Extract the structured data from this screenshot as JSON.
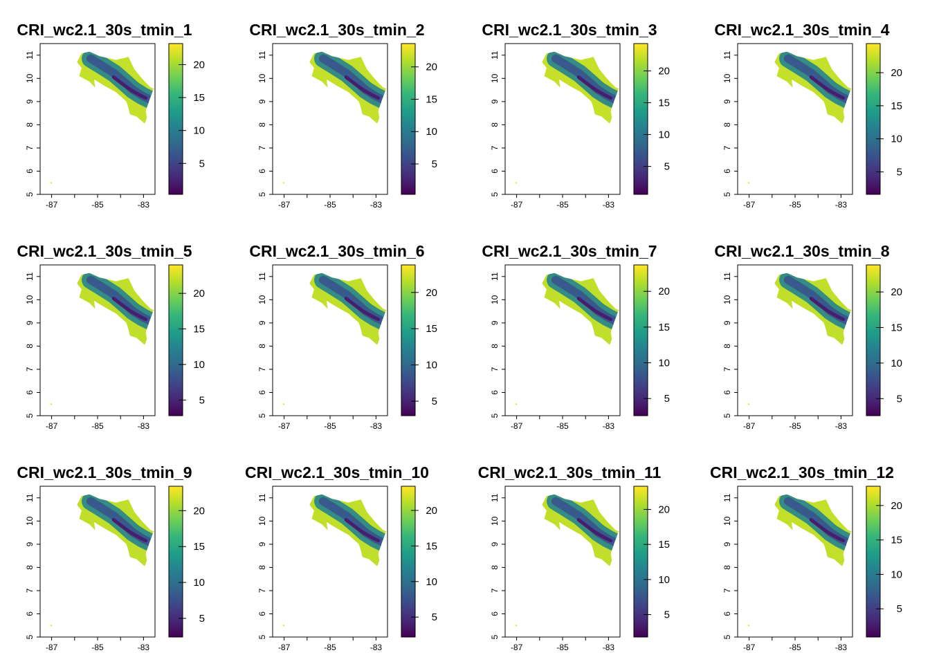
{
  "figure": {
    "colormap": [
      "#440154",
      "#482878",
      "#3e4989",
      "#31688e",
      "#26828e",
      "#1f9e89",
      "#35b779",
      "#6ece58",
      "#b5de2b",
      "#fde725"
    ]
  },
  "chart_data": [
    {
      "type": "heatmap",
      "title": "CRI_wc2.1_30s_tmin_1",
      "xlim": [
        -87.5,
        -82.5
      ],
      "ylim": [
        5,
        11.5
      ],
      "x_ticks": [
        "-87",
        "-85",
        "-83"
      ],
      "y_ticks": [
        "5",
        "6",
        "7",
        "8",
        "9",
        "10",
        "11"
      ],
      "colorbar": {
        "range": [
          0.3,
          23.2
        ],
        "ticks": [
          "5",
          "10",
          "15",
          "20"
        ]
      }
    },
    {
      "type": "heatmap",
      "title": "CRI_wc2.1_30s_tmin_2",
      "xlim": [
        -87.5,
        -82.5
      ],
      "ylim": [
        5,
        11.5
      ],
      "x_ticks": [
        "-87",
        "-85",
        "-83"
      ],
      "y_ticks": [
        "5",
        "6",
        "7",
        "8",
        "9",
        "10",
        "11"
      ],
      "colorbar": {
        "range": [
          0.3,
          23.6
        ],
        "ticks": [
          "5",
          "10",
          "15",
          "20"
        ]
      }
    },
    {
      "type": "heatmap",
      "title": "CRI_wc2.1_30s_tmin_3",
      "xlim": [
        -87.5,
        -82.5
      ],
      "ylim": [
        5,
        11.5
      ],
      "x_ticks": [
        "-87",
        "-85",
        "-83"
      ],
      "y_ticks": [
        "5",
        "6",
        "7",
        "8",
        "9",
        "10",
        "11"
      ],
      "colorbar": {
        "range": [
          0.6,
          24.3
        ],
        "ticks": [
          "5",
          "10",
          "15",
          "20"
        ]
      }
    },
    {
      "type": "heatmap",
      "title": "CRI_wc2.1_30s_tmin_4",
      "xlim": [
        -87.5,
        -82.5
      ],
      "ylim": [
        5,
        11.5
      ],
      "x_ticks": [
        "-87",
        "-85",
        "-83"
      ],
      "y_ticks": [
        "5",
        "6",
        "7",
        "8",
        "9",
        "10",
        "11"
      ],
      "colorbar": {
        "range": [
          1.6,
          24.4
        ],
        "ticks": [
          "5",
          "10",
          "15",
          "20"
        ]
      }
    },
    {
      "type": "heatmap",
      "title": "CRI_wc2.1_30s_tmin_5",
      "xlim": [
        -87.5,
        -82.5
      ],
      "ylim": [
        5,
        11.5
      ],
      "x_ticks": [
        "-87",
        "-85",
        "-83"
      ],
      "y_ticks": [
        "5",
        "6",
        "7",
        "8",
        "9",
        "10",
        "11"
      ],
      "colorbar": {
        "range": [
          2.8,
          24.0
        ],
        "ticks": [
          "5",
          "10",
          "15",
          "20"
        ]
      }
    },
    {
      "type": "heatmap",
      "title": "CRI_wc2.1_30s_tmin_6",
      "xlim": [
        -87.5,
        -82.5
      ],
      "ylim": [
        5,
        11.5
      ],
      "x_ticks": [
        "-87",
        "-85",
        "-83"
      ],
      "y_ticks": [
        "5",
        "6",
        "7",
        "8",
        "9",
        "10",
        "11"
      ],
      "colorbar": {
        "range": [
          3.0,
          23.8
        ],
        "ticks": [
          "5",
          "10",
          "15",
          "20"
        ]
      }
    },
    {
      "type": "heatmap",
      "title": "CRI_wc2.1_30s_tmin_7",
      "xlim": [
        -87.5,
        -82.5
      ],
      "ylim": [
        5,
        11.5
      ],
      "x_ticks": [
        "-87",
        "-85",
        "-83"
      ],
      "y_ticks": [
        "5",
        "6",
        "7",
        "8",
        "9",
        "10",
        "11"
      ],
      "colorbar": {
        "range": [
          2.6,
          23.7
        ],
        "ticks": [
          "5",
          "10",
          "15",
          "20"
        ]
      }
    },
    {
      "type": "heatmap",
      "title": "CRI_wc2.1_30s_tmin_8",
      "xlim": [
        -87.5,
        -82.5
      ],
      "ylim": [
        5,
        11.5
      ],
      "x_ticks": [
        "-87",
        "-85",
        "-83"
      ],
      "y_ticks": [
        "5",
        "6",
        "7",
        "8",
        "9",
        "10",
        "11"
      ],
      "colorbar": {
        "range": [
          2.6,
          23.8
        ],
        "ticks": [
          "5",
          "10",
          "15",
          "20"
        ]
      }
    },
    {
      "type": "heatmap",
      "title": "CRI_wc2.1_30s_tmin_9",
      "xlim": [
        -87.5,
        -82.5
      ],
      "ylim": [
        5,
        11.5
      ],
      "x_ticks": [
        "-87",
        "-85",
        "-83"
      ],
      "y_ticks": [
        "5",
        "6",
        "7",
        "8",
        "9",
        "10",
        "11"
      ],
      "colorbar": {
        "range": [
          2.4,
          23.4
        ],
        "ticks": [
          "5",
          "10",
          "15",
          "20"
        ]
      }
    },
    {
      "type": "heatmap",
      "title": "CRI_wc2.1_30s_tmin_10",
      "xlim": [
        -87.5,
        -82.5
      ],
      "ylim": [
        5,
        11.5
      ],
      "x_ticks": [
        "-87",
        "-85",
        "-83"
      ],
      "y_ticks": [
        "5",
        "6",
        "7",
        "8",
        "9",
        "10",
        "11"
      ],
      "colorbar": {
        "range": [
          2.2,
          23.4
        ],
        "ticks": [
          "5",
          "10",
          "15",
          "20"
        ]
      }
    },
    {
      "type": "heatmap",
      "title": "CRI_wc2.1_30s_tmin_11",
      "xlim": [
        -87.5,
        -82.5
      ],
      "ylim": [
        5,
        11.5
      ],
      "x_ticks": [
        "-87",
        "-85",
        "-83"
      ],
      "y_ticks": [
        "5",
        "6",
        "7",
        "8",
        "9",
        "10",
        "11"
      ],
      "colorbar": {
        "range": [
          1.8,
          23.3
        ],
        "ticks": [
          "5",
          "10",
          "15",
          "20"
        ]
      }
    },
    {
      "type": "heatmap",
      "title": "CRI_wc2.1_30s_tmin_12",
      "xlim": [
        -87.5,
        -82.5
      ],
      "ylim": [
        5,
        11.5
      ],
      "x_ticks": [
        "-87",
        "-85",
        "-83"
      ],
      "y_ticks": [
        "5",
        "6",
        "7",
        "8",
        "9",
        "10",
        "11"
      ],
      "colorbar": {
        "range": [
          0.9,
          22.8
        ],
        "ticks": [
          "5",
          "10",
          "15",
          "20"
        ]
      }
    }
  ]
}
